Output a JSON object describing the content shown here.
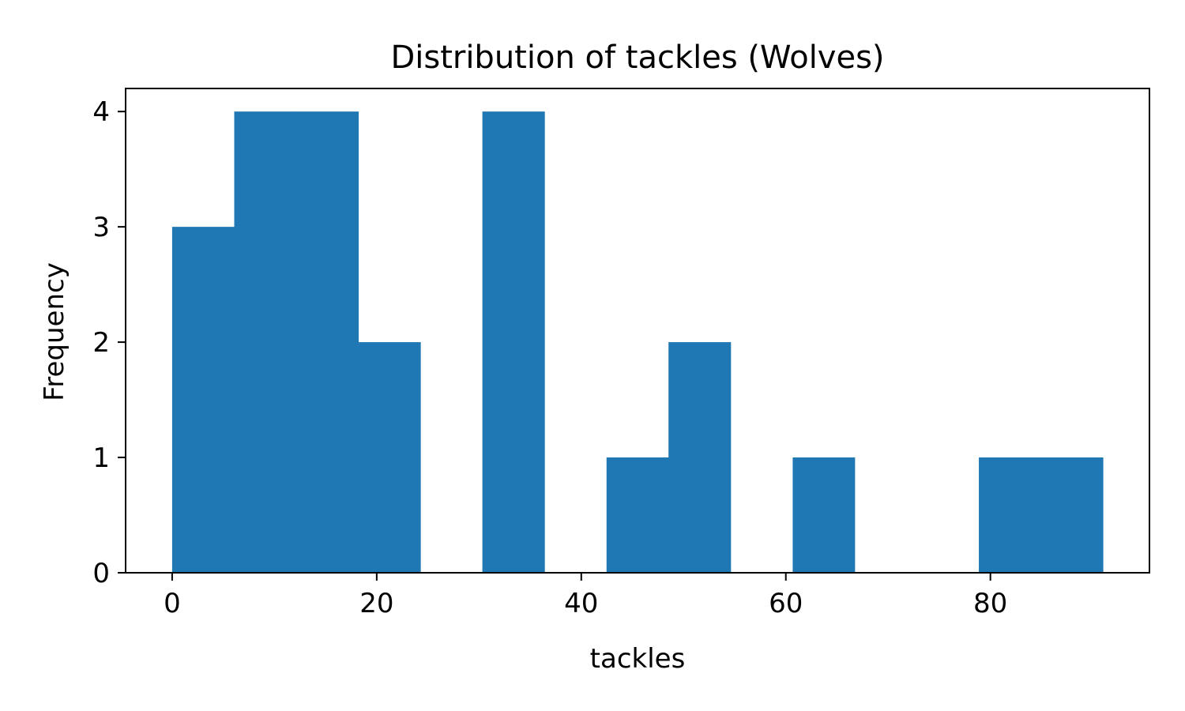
{
  "chart_data": {
    "type": "bar",
    "title": "Distribution of tackles (Wolves)",
    "xlabel": "tackles",
    "ylabel": "Frequency",
    "xlim": [
      -4.55,
      95.55
    ],
    "ylim": [
      0,
      4.2
    ],
    "xticks": [
      0,
      20,
      40,
      60,
      80
    ],
    "yticks": [
      0,
      1,
      2,
      3,
      4
    ],
    "bins": [
      {
        "x0": 0.0,
        "x1": 6.07,
        "count": 3
      },
      {
        "x0": 6.07,
        "x1": 12.13,
        "count": 4
      },
      {
        "x0": 12.13,
        "x1": 18.2,
        "count": 4
      },
      {
        "x0": 18.2,
        "x1": 24.27,
        "count": 2
      },
      {
        "x0": 24.27,
        "x1": 30.33,
        "count": 0
      },
      {
        "x0": 30.33,
        "x1": 36.4,
        "count": 4
      },
      {
        "x0": 36.4,
        "x1": 42.47,
        "count": 0
      },
      {
        "x0": 42.47,
        "x1": 48.53,
        "count": 1
      },
      {
        "x0": 48.53,
        "x1": 54.6,
        "count": 2
      },
      {
        "x0": 54.6,
        "x1": 60.67,
        "count": 0
      },
      {
        "x0": 60.67,
        "x1": 66.73,
        "count": 1
      },
      {
        "x0": 66.73,
        "x1": 72.8,
        "count": 0
      },
      {
        "x0": 72.8,
        "x1": 78.87,
        "count": 0
      },
      {
        "x0": 78.87,
        "x1": 84.93,
        "count": 1
      },
      {
        "x0": 84.93,
        "x1": 91.0,
        "count": 1
      }
    ],
    "bar_color": "#1f77b4",
    "grid": false,
    "legend": "none"
  }
}
